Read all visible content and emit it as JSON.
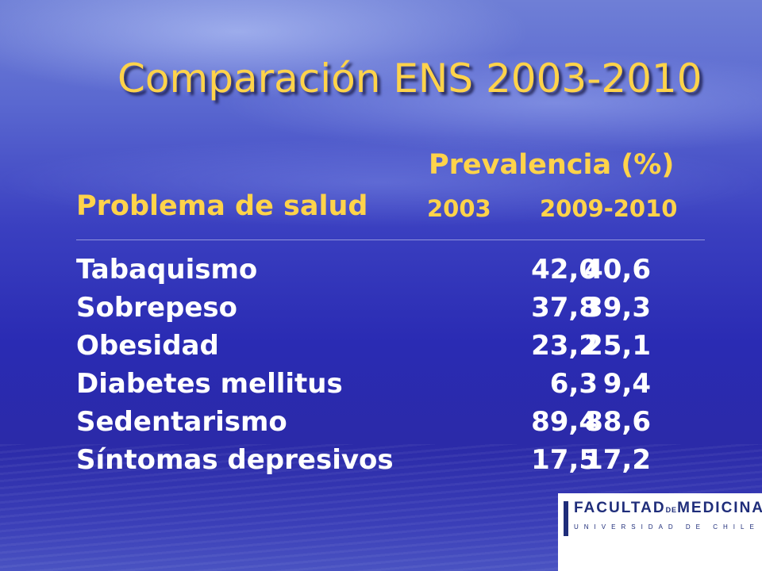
{
  "slide": {
    "title": "Comparación ENS 2003-2010"
  },
  "table": {
    "group_header": "Prevalencia (%)",
    "row_header": "Problema de salud",
    "col1_header": "2003",
    "col2_header": "2009-2010",
    "rows": [
      {
        "name": "Tabaquismo",
        "v2003": "42,0",
        "v2010": "40,6"
      },
      {
        "name": "Sobrepeso",
        "v2003": "37,8",
        "v2010": "39,3"
      },
      {
        "name": "Obesidad",
        "v2003": "23,2",
        "v2010": "25,1"
      },
      {
        "name": "Diabetes mellitus",
        "v2003": "6,3",
        "v2010": "9,4"
      },
      {
        "name": "Sedentarismo",
        "v2003": "89,4",
        "v2010": "88,6"
      },
      {
        "name": "Síntomas depresivos",
        "v2003": "17,5",
        "v2010": "17,2"
      }
    ]
  },
  "logo": {
    "word1": "FACULTAD",
    "word_de": "DE",
    "word2": "MEDICINA",
    "subtitle": "UNIVERSIDAD DE CHILE"
  },
  "colors": {
    "title": "#ffd34a",
    "header": "#ffd34a",
    "body_text": "#ffffff",
    "logo_blue": "#1f2d7a"
  }
}
